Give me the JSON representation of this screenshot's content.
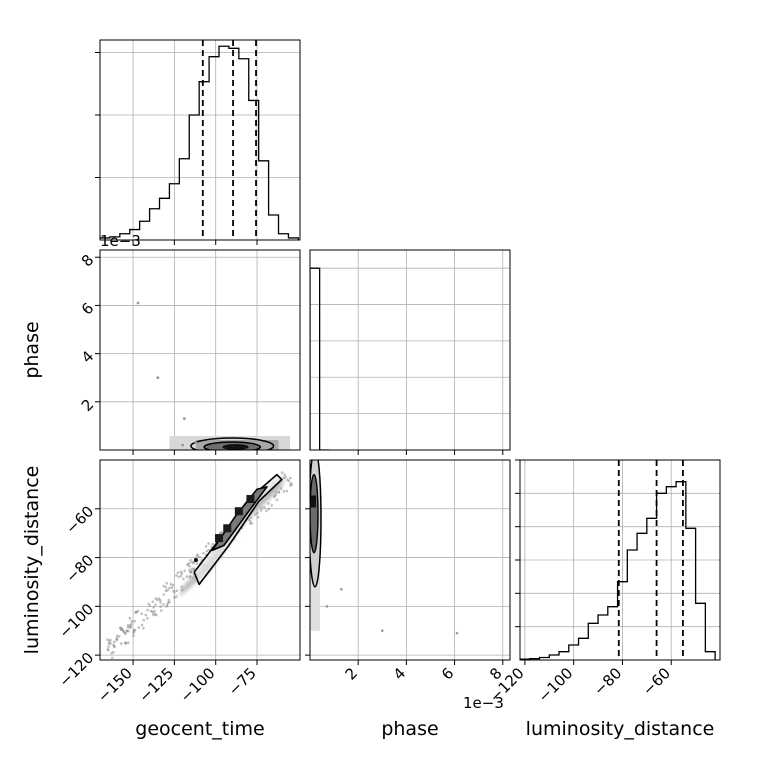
{
  "chart_data": {
    "type": "corner",
    "parameters": [
      "geocent_time",
      "phase",
      "luminosity_distance"
    ],
    "axes_labels": {
      "geocent_time": "geocent_time",
      "phase": "phase",
      "luminosity_distance": "luminosity_distance"
    },
    "ranges": {
      "geocent_time": [
        -170,
        -49
      ],
      "phase": [
        0.0,
        0.0083
      ],
      "luminosity_distance": [
        -122,
        -40
      ]
    },
    "ticks": {
      "geocent_time": [
        -150,
        -125,
        -100,
        -75
      ],
      "phase": [
        0.002,
        0.004,
        0.006,
        0.008
      ],
      "luminosity_distance": [
        -120,
        -100,
        -80,
        -60
      ]
    },
    "tick_labels": {
      "geocent_time": [
        "−150",
        "−125",
        "−100",
        "−75"
      ],
      "phase_x": [
        "2",
        "4",
        "6",
        "8"
      ],
      "phase_y": [
        "2",
        "4",
        "6",
        "8"
      ],
      "luminosity_distance_x": [
        "−120",
        "−100",
        "−80",
        "−60"
      ],
      "luminosity_distance_y": [
        "−60",
        "−80",
        "−100",
        "−120"
      ]
    },
    "offset_text": "1e−3",
    "grid": true,
    "histograms": {
      "geocent_time": {
        "bin_edges": [
          -170,
          -164,
          -158,
          -152,
          -146,
          -140,
          -134,
          -128,
          -122,
          -116,
          -110,
          -104,
          -98,
          -92,
          -86,
          -80,
          -74,
          -68,
          -62,
          -56,
          -50
        ],
        "counts": [
          0.01,
          0.015,
          0.03,
          0.05,
          0.09,
          0.15,
          0.2,
          0.27,
          0.39,
          0.6,
          0.76,
          0.88,
          0.93,
          0.92,
          0.87,
          0.67,
          0.38,
          0.12,
          0.03,
          0.01
        ],
        "quantiles": [
          -107.8,
          -89.5,
          -75.6
        ]
      },
      "phase": {
        "bin_edges": [
          0.0,
          0.0004,
          0.0008
        ],
        "counts": [
          1.0,
          0.0
        ],
        "quantiles": []
      },
      "luminosity_distance": {
        "bin_edges": [
          -122,
          -118,
          -114,
          -110,
          -106,
          -102,
          -98,
          -94,
          -90,
          -86,
          -82,
          -78,
          -74,
          -70,
          -66,
          -62,
          -58,
          -54,
          -50,
          -46,
          -42
        ],
        "counts": [
          0.005,
          0.008,
          0.015,
          0.03,
          0.05,
          0.09,
          0.13,
          0.22,
          0.27,
          0.32,
          0.47,
          0.66,
          0.76,
          0.85,
          1.0,
          1.04,
          1.07,
          0.79,
          0.34,
          0.05
        ],
        "quantiles": [
          -81.5,
          -66.0,
          -55.2
        ]
      }
    },
    "scatter_samples": {
      "geocent_time_vs_phase": [
        {
          "x": -147,
          "y": 0.0061
        },
        {
          "x": -135,
          "y": 0.003
        },
        {
          "x": -119,
          "y": 0.0013
        },
        {
          "x": -112,
          "y": 0.0003
        },
        {
          "x": -120,
          "y": 0.0002
        }
      ],
      "phase_vs_luminosity_distance": [
        {
          "x": 0.003,
          "y": -110
        },
        {
          "x": 0.0061,
          "y": -111
        },
        {
          "x": 0.0013,
          "y": -93
        },
        {
          "x": 0.0007,
          "y": -100
        }
      ]
    }
  }
}
